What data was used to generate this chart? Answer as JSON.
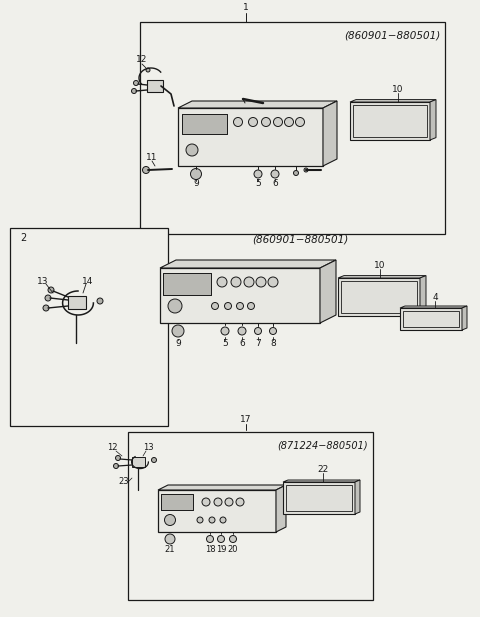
{
  "bg_color": "#f0f0eb",
  "line_color": "#1a1a1a",
  "box1_label": "(860901−880501)",
  "box2_label": "(860901−880501)",
  "box3_label": "(871224−880501)"
}
